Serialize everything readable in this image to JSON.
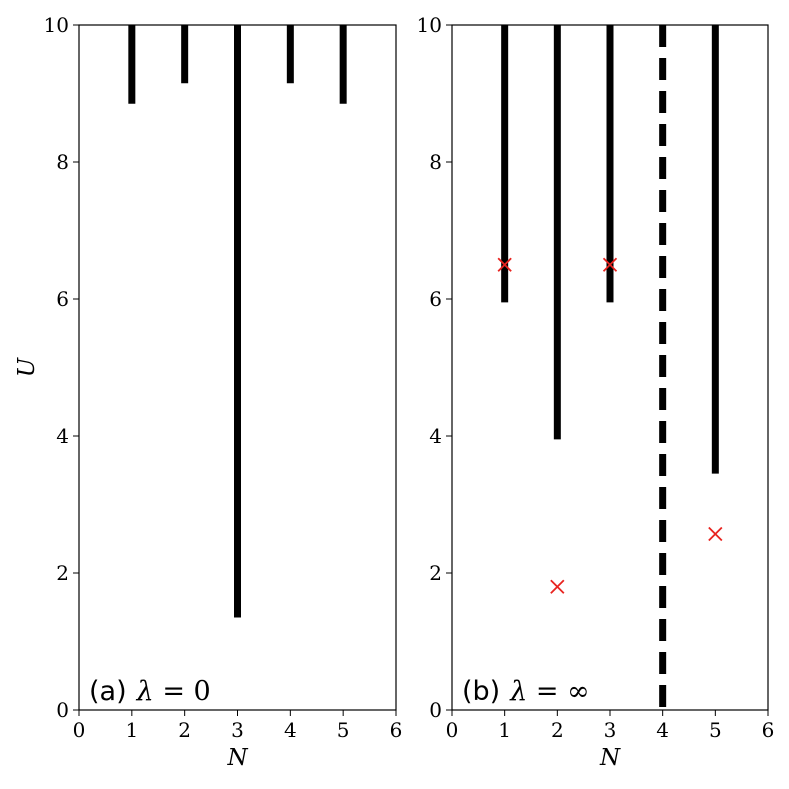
{
  "chart_data": [
    {
      "type": "bar",
      "panel_label": "(a)",
      "annotation_symbol": "λ",
      "annotation_relation": " = ",
      "annotation_value": "0",
      "xlabel": "N",
      "ylabel": "U",
      "xlim": [
        0,
        6
      ],
      "ylim": [
        0,
        10
      ],
      "xticks": [
        "0",
        "1",
        "2",
        "3",
        "4",
        "5",
        "6"
      ],
      "yticks": [
        "0",
        "2",
        "4",
        "6",
        "8",
        "10"
      ],
      "grid": false,
      "bar_color": "#000000",
      "solid_bars": [
        {
          "N": 1,
          "U_min": 8.85,
          "U_max": 10
        },
        {
          "N": 2,
          "U_min": 9.15,
          "U_max": 10
        },
        {
          "N": 3,
          "U_min": 1.35,
          "U_max": 10
        },
        {
          "N": 4,
          "U_min": 9.15,
          "U_max": 10
        },
        {
          "N": 5,
          "U_min": 8.85,
          "U_max": 10
        }
      ],
      "dashed_lines": [],
      "markers": []
    },
    {
      "type": "bar",
      "panel_label": "(b)",
      "annotation_symbol": "λ",
      "annotation_relation": " = ",
      "annotation_value": "∞",
      "xlabel": "N",
      "ylabel": "",
      "xlim": [
        0,
        6
      ],
      "ylim": [
        0,
        10
      ],
      "xticks": [
        "0",
        "1",
        "2",
        "3",
        "4",
        "5",
        "6"
      ],
      "yticks": [
        "0",
        "2",
        "4",
        "6",
        "8",
        "10"
      ],
      "grid": false,
      "bar_color": "#000000",
      "marker_color": "#e8231f",
      "solid_bars": [
        {
          "N": 1,
          "U_min": 5.95,
          "U_max": 10
        },
        {
          "N": 2,
          "U_min": 3.95,
          "U_max": 10
        },
        {
          "N": 3,
          "U_min": 5.95,
          "U_max": 10
        },
        {
          "N": 5,
          "U_min": 3.45,
          "U_max": 10
        }
      ],
      "dashed_lines": [
        {
          "N": 4,
          "U_min": 0,
          "U_max": 10
        }
      ],
      "markers": [
        {
          "N": 1,
          "U": 6.5,
          "symbol": "x"
        },
        {
          "N": 3,
          "U": 6.5,
          "symbol": "x"
        },
        {
          "N": 2,
          "U": 1.8,
          "symbol": "x"
        },
        {
          "N": 5,
          "U": 2.57,
          "symbol": "x"
        }
      ]
    }
  ]
}
